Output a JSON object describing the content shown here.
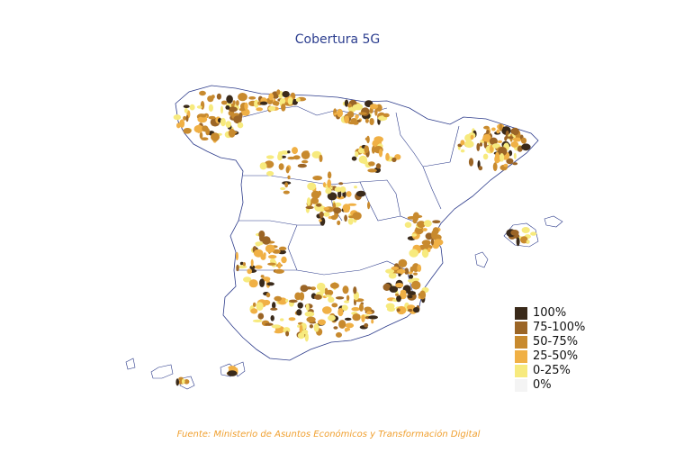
{
  "title": "Cobertura 5G",
  "legend": [
    {
      "label": "100%",
      "color": "#3a2a1a"
    },
    {
      "label": "75-100%",
      "color": "#9b6526"
    },
    {
      "label": "50-75%",
      "color": "#c88a2e"
    },
    {
      "label": "25-50%",
      "color": "#f0b045"
    },
    {
      "label": "0-25%",
      "color": "#f7ea7e"
    },
    {
      "label": "0%",
      "color": "#f4f4f4"
    }
  ],
  "source": "Fuente: Ministerio de Asuntos Económicos y Transformación Digital",
  "colors": {
    "title": "#2c3e8f",
    "source": "#f0a030",
    "border": "#2b3a8a"
  }
}
